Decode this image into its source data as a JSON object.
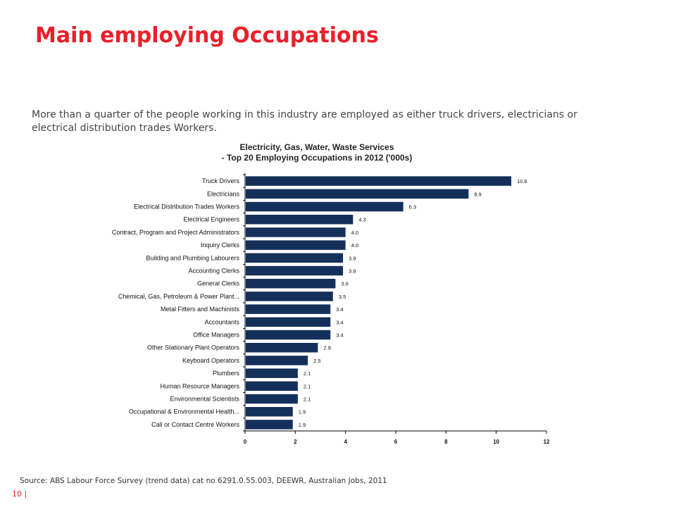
{
  "slide": {
    "title": "Main employing Occupations",
    "intro": "More than a quarter of the people working in this industry are employed as either truck drivers, electricians or electrical distribution trades Workers.",
    "source": "Source: ABS Labour Force Survey (trend data) cat no 6291.0.55.003, DEEWR, Australian Jobs, 2011",
    "page_number": "10 |"
  },
  "colors": {
    "title": "#e8202a",
    "bar": "#14305a",
    "page_number": "#e8202a"
  },
  "chart_data": {
    "type": "bar",
    "orientation": "horizontal",
    "title": "Electricity, Gas, Water, Waste Services",
    "subtitle": "- Top 20 Employing Occupations in 2012 ('000s)",
    "xlabel": "",
    "ylabel": "",
    "xlim": [
      0,
      12
    ],
    "x_ticks": [
      "0",
      "2",
      "4",
      "6",
      "8",
      "10",
      "12"
    ],
    "grid": false,
    "categories": [
      "Truck Drivers",
      "Electricians",
      "Electrical Distribution Trades Workers",
      "Electrical Engineers",
      "Contract, Program and Project Administrators",
      "Inquiry Clerks",
      "Building and Plumbing Labourers",
      "Accounting Clerks",
      "General Clerks",
      "Chemical, Gas, Petroleum & Power Plant...",
      "Metal Fitters and Machinists",
      "Accountants",
      "Office Managers",
      "Other Stationary Plant Operators",
      "Keyboard Operators",
      "Plumbers",
      "Human Resource Managers",
      "Environmental Scientists",
      "Occupational & Environmental Health...",
      "Call or Contact Centre Workers"
    ],
    "values": [
      10.6,
      8.9,
      6.3,
      4.3,
      4.0,
      4.0,
      3.9,
      3.9,
      3.6,
      3.5,
      3.4,
      3.4,
      3.4,
      2.9,
      2.5,
      2.1,
      2.1,
      2.1,
      1.9,
      1.9
    ],
    "value_labels": [
      "10.6",
      "8.9",
      "6.3",
      "4.3",
      "4.0",
      "4.0",
      "3.9",
      "3.9",
      "3.6",
      "3.5",
      "3.4",
      "3.4",
      "3.4",
      "2.9",
      "2.5",
      "2.1",
      "2.1",
      "2.1",
      "1.9",
      "1.9"
    ]
  }
}
